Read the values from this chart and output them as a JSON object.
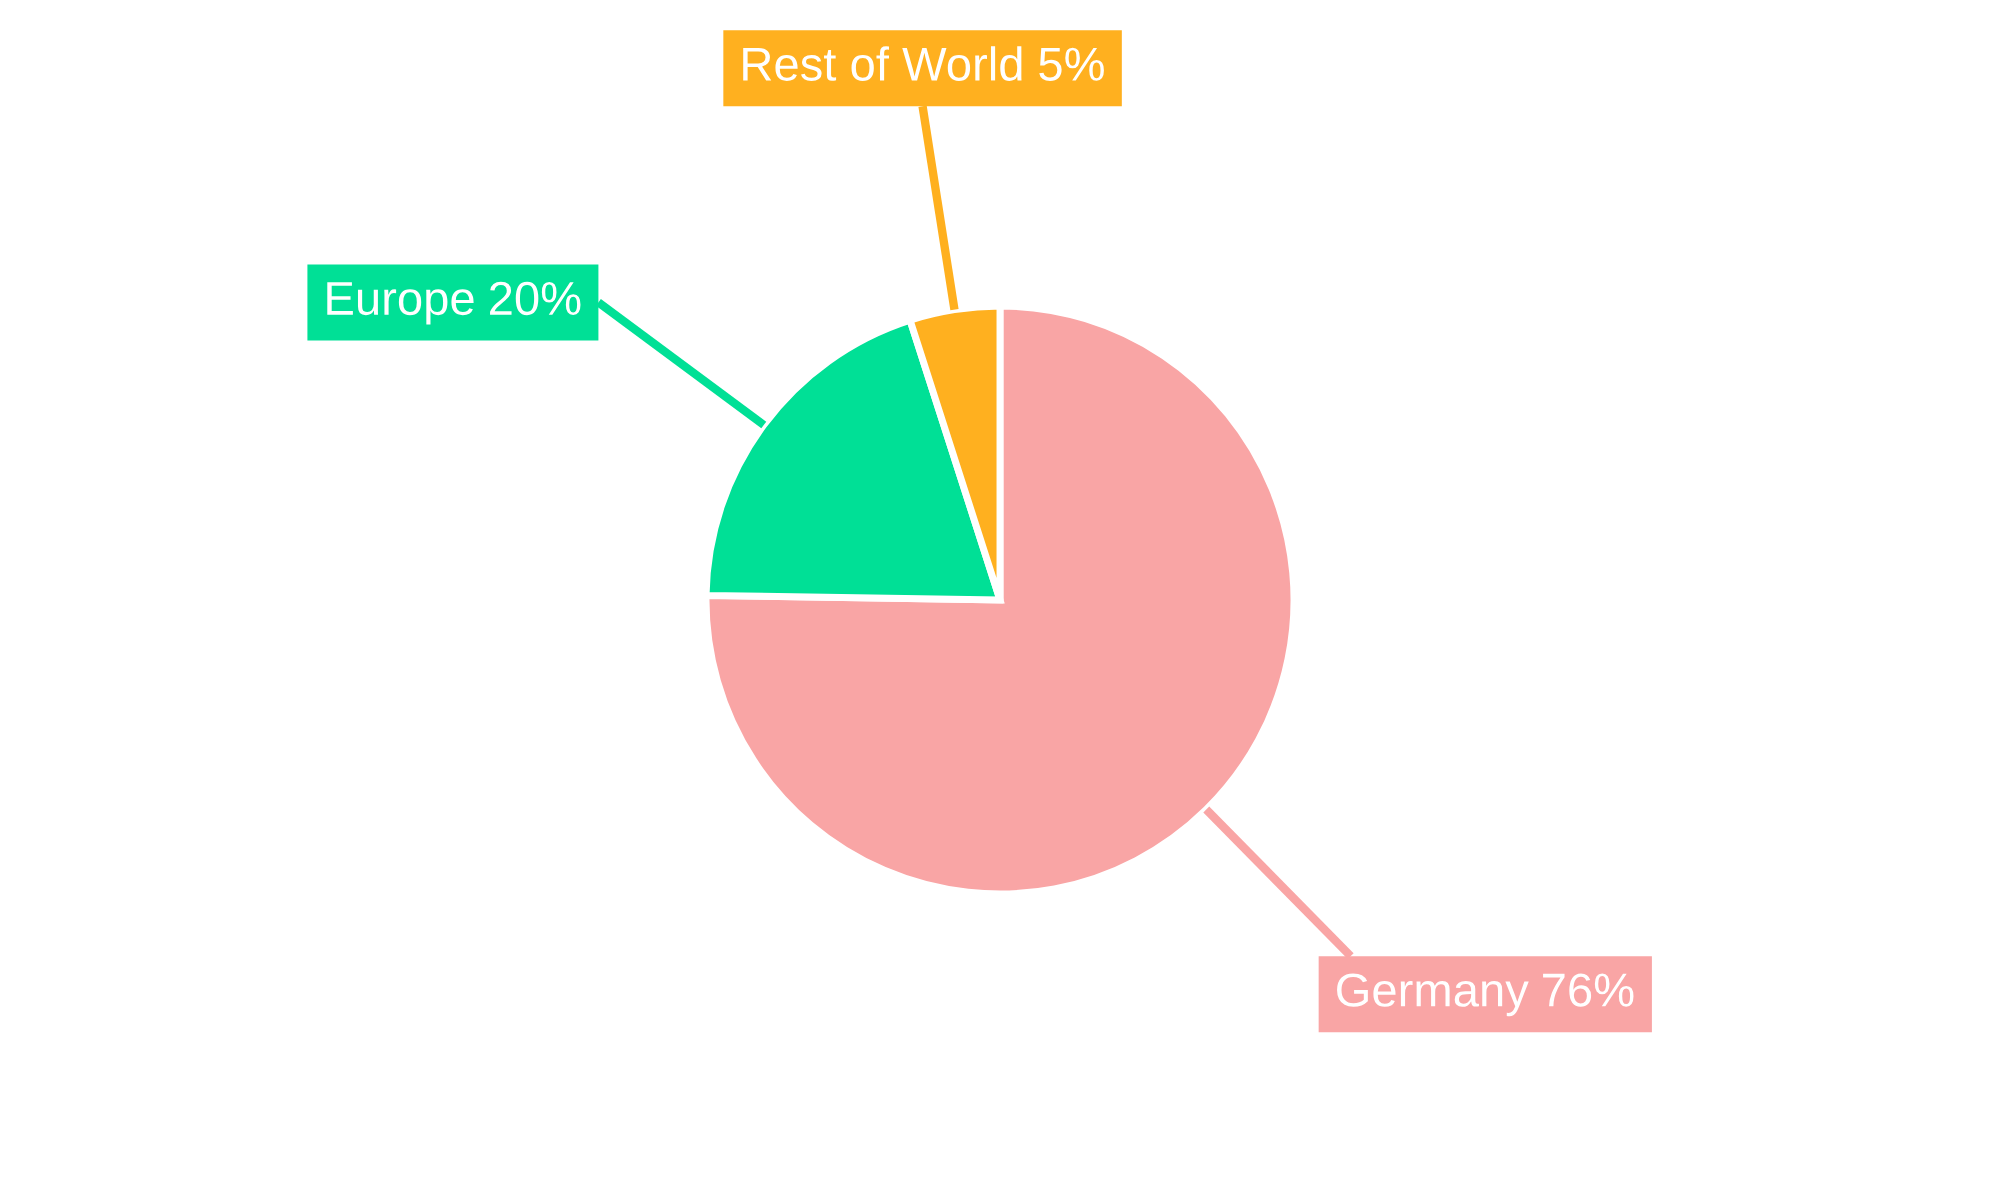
{
  "chart_data": {
    "type": "pie",
    "categories": [
      "Germany",
      "Europe",
      "Rest of World"
    ],
    "values": [
      76,
      20,
      5
    ],
    "value_labels": [
      "76%",
      "20%",
      "5%"
    ],
    "colors": [
      "#f9a5a5",
      "#00e096",
      "#ffb01f"
    ]
  }
}
